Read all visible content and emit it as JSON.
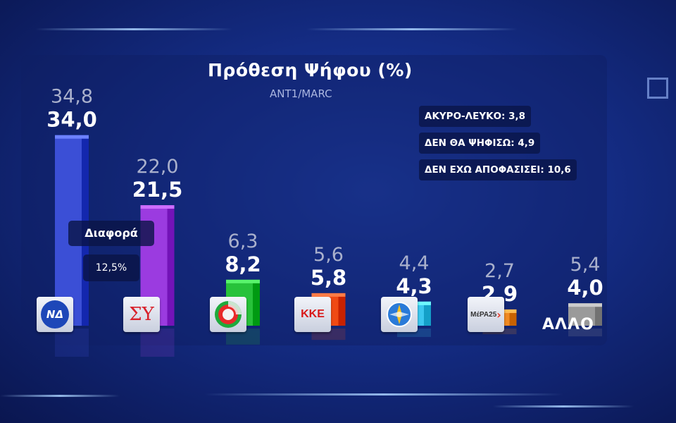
{
  "chart_data": {
    "type": "bar",
    "title": "Πρόθεση Ψήφου (%)",
    "subtitle": "ANT1/MARC",
    "categories": [
      "ΝΔ",
      "ΣΥΡΙΖΑ",
      "ΠΑΣΟΚ",
      "ΚΚΕ",
      "ΕΛΛΗΝΙΚΗ ΛΥΣΗ",
      "ΜέΡΑ25",
      "ΑΛΛΟ"
    ],
    "series": [
      {
        "values": [
          34.0,
          21.5,
          8.2,
          5.8,
          4.3,
          2.9,
          4.0
        ]
      },
      {
        "values": [
          34.8,
          22.0,
          6.3,
          5.6,
          4.4,
          2.7,
          5.4
        ]
      }
    ],
    "current_labels": [
      "34,0",
      "21,5",
      "8,2",
      "5,8",
      "4,3",
      "2,9",
      "4,0"
    ],
    "previous_labels": [
      "34,8",
      "22,0",
      "6,3",
      "5,6",
      "4,4",
      "2,7",
      "5,4"
    ],
    "colors": [
      "#3b4fd6",
      "#9b3be0",
      "#27c23a",
      "#f04a14",
      "#3cc8f0",
      "#f08a22",
      "#9a9a9a"
    ],
    "ylim": [
      0,
      35
    ]
  },
  "logos": {
    "nd": "ΝΔ",
    "syriza": "ΣΥ",
    "pasok": "pasok-logo",
    "kke": "ΚΚΕ",
    "elliniki_lysi": "compass-logo",
    "mera25": "ΜέΡΑ25",
    "allo": "ΑΛΛΟ"
  },
  "notes": [
    {
      "label": "ΑΚΥΡΟ-ΛΕΥΚΟ:",
      "value": "3,8"
    },
    {
      "label": "ΔΕΝ ΘΑ ΨΗΦΙΣΩ:",
      "value": "4,9"
    },
    {
      "label": "ΔΕΝ ΕΧΩ ΑΠΟΦΑΣΙΣΕΙ:",
      "value": "10,6"
    }
  ],
  "difference": {
    "label": "Διαφορά",
    "value": "12,5%"
  }
}
